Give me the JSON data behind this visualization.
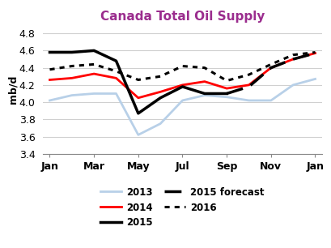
{
  "title": "Canada Total Oil Supply",
  "ylabel": "mb/d",
  "title_color": "#9B2D8E",
  "x_labels": [
    "Jan",
    "Mar",
    "May",
    "Jul",
    "Sep",
    "Nov",
    "Jan"
  ],
  "x_positions": [
    0,
    2,
    4,
    6,
    8,
    10,
    12
  ],
  "ylim": [
    3.4,
    4.9
  ],
  "yticks": [
    3.4,
    3.6,
    3.8,
    4.0,
    4.2,
    4.4,
    4.6,
    4.8
  ],
  "series": {
    "2013": {
      "x": [
        0,
        1,
        2,
        3,
        4,
        5,
        6,
        7,
        8,
        9,
        10,
        11,
        12
      ],
      "y": [
        4.02,
        4.08,
        4.1,
        4.1,
        3.62,
        3.75,
        4.02,
        4.08,
        4.06,
        4.02,
        4.02,
        4.2,
        4.27
      ],
      "color": "#b8d0e8",
      "linestyle": "solid",
      "linewidth": 2.0,
      "label": "2013"
    },
    "2014": {
      "x": [
        0,
        1,
        2,
        3,
        4,
        5,
        6,
        7,
        8,
        9,
        10,
        11,
        12
      ],
      "y": [
        4.26,
        4.28,
        4.33,
        4.28,
        4.05,
        4.12,
        4.2,
        4.24,
        4.16,
        4.2,
        4.4,
        4.5,
        4.57
      ],
      "color": "#ff0000",
      "linestyle": "solid",
      "linewidth": 2.0,
      "label": "2014"
    },
    "2015": {
      "x": [
        0,
        1,
        2,
        3,
        4,
        5,
        6,
        7,
        8
      ],
      "y": [
        4.58,
        4.58,
        4.6,
        4.48,
        3.87,
        4.05,
        4.18,
        4.1,
        4.1
      ],
      "color": "#000000",
      "linestyle": "solid",
      "linewidth": 2.5,
      "label": "2015"
    },
    "2015_forecast": {
      "x": [
        8,
        9,
        10,
        11,
        12
      ],
      "y": [
        4.1,
        4.18,
        4.4,
        4.5,
        4.57
      ],
      "color": "#000000",
      "linestyle": "dashed",
      "linewidth": 2.5,
      "label": "2015 forecast"
    },
    "2016": {
      "x": [
        0,
        1,
        2,
        3,
        4,
        5,
        6,
        7,
        8,
        9,
        10,
        11,
        12
      ],
      "y": [
        4.38,
        4.42,
        4.44,
        4.36,
        4.26,
        4.3,
        4.42,
        4.4,
        4.25,
        4.32,
        4.44,
        4.55,
        4.58
      ],
      "color": "#000000",
      "linestyle": "dotted",
      "linewidth": 2.2,
      "label": "2016"
    }
  },
  "background_color": "#ffffff",
  "grid_color": "#d0d0d0"
}
